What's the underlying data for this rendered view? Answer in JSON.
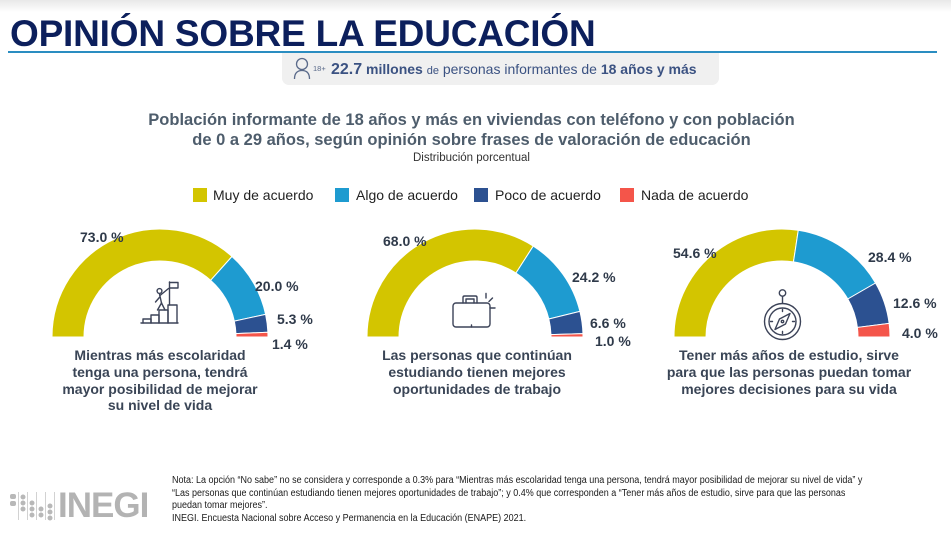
{
  "header": {
    "title": "OPINIÓN SOBRE LA EDUCACIÓN"
  },
  "badge": {
    "icon": "person-18plus-icon",
    "age_tag": "18+",
    "value": "22.7",
    "unit": "millones",
    "connector": "de",
    "text": "personas informantes de",
    "highlight": "18 años y más"
  },
  "figure": {
    "title_lines": [
      "Población informante de 18 años y más en viviendas con teléfono y con población",
      "de 0 a 29 años, según opinión sobre frases de valoración de educación"
    ],
    "subtitle": "Distribución porcentual",
    "legend": [
      {
        "label": "Muy de acuerdo",
        "color": "#d3c500"
      },
      {
        "label": "Algo de acuerdo",
        "color": "#1e9bd0"
      },
      {
        "label": "Poco de acuerdo",
        "color": "#2c5191"
      },
      {
        "label": "Nada de acuerdo",
        "color": "#f4554a"
      }
    ],
    "legend_position": "top"
  },
  "chart_data": [
    {
      "type": "pie",
      "variant": "half-donut",
      "title_lines": [
        "Mientras más escolaridad",
        "tenga una persona, tendrá",
        "mayor posibilidad de mejorar",
        "su nivel de vida"
      ],
      "icon": "climber-flag-icon",
      "categories": [
        "Muy de acuerdo",
        "Algo de acuerdo",
        "Poco de acuerdo",
        "Nada de acuerdo"
      ],
      "colors": [
        "#d3c500",
        "#1e9bd0",
        "#2c5191",
        "#f4554a"
      ],
      "values": [
        73.0,
        20.0,
        5.3,
        1.4
      ],
      "labels": [
        "73.0 %",
        "20.0 %",
        "5.3 %",
        "1.4 %"
      ],
      "unit": "%"
    },
    {
      "type": "pie",
      "variant": "half-donut",
      "title_lines": [
        "Las personas que continúan",
        "estudiando tienen mejores",
        "oportunidades de trabajo"
      ],
      "icon": "briefcase-icon",
      "categories": [
        "Muy de acuerdo",
        "Algo de acuerdo",
        "Poco de acuerdo",
        "Nada de acuerdo"
      ],
      "colors": [
        "#d3c500",
        "#1e9bd0",
        "#2c5191",
        "#f4554a"
      ],
      "values": [
        68.0,
        24.2,
        6.6,
        1.0
      ],
      "labels": [
        "68.0 %",
        "24.2 %",
        "6.6 %",
        "1.0 %"
      ],
      "unit": "%"
    },
    {
      "type": "pie",
      "variant": "half-donut",
      "title_lines": [
        "Tener más años de estudio, sirve",
        "para que las personas puedan tomar",
        "mejores decisiones para su vida"
      ],
      "icon": "compass-icon",
      "categories": [
        "Muy de acuerdo",
        "Algo de acuerdo",
        "Poco de acuerdo",
        "Nada de acuerdo"
      ],
      "colors": [
        "#d3c500",
        "#1e9bd0",
        "#2c5191",
        "#f4554a"
      ],
      "values": [
        54.6,
        28.4,
        12.6,
        4.0
      ],
      "labels": [
        "54.6 %",
        "28.4 %",
        "12.6 %",
        "4.0 %"
      ],
      "unit": "%"
    }
  ],
  "footer": {
    "note_lines": [
      "Nota: La opción “No sabe” no se considera y corresponde a 0.3% para “Mientras más escolaridad tenga una persona, tendrá mayor posibilidad de mejorar su nivel de vida” y",
      "“Las personas que continúan estudiando tienen mejores oportunidades de trabajo”; y 0.4% que corresponden a “Tener más años de estudio, sirve para que las personas",
      "puedan tomar mejores”."
    ],
    "source": "INEGI. Encuesta Nacional sobre Acceso y Permanencia en la Educación (ENAPE) 2021."
  },
  "logo": {
    "text": "INEGI",
    "icon": "inegi-dots-logo-icon"
  }
}
